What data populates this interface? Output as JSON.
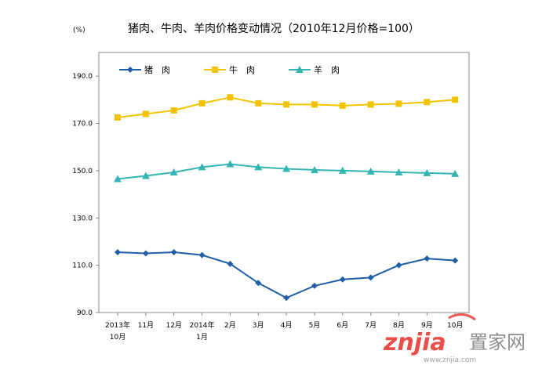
{
  "chart_data": {
    "type": "line",
    "title": "猪肉、牛肉、羊肉价格变动情况（2010年12月价格=100）",
    "unit": "(%)",
    "categories": [
      [
        "2013年",
        "10月"
      ],
      [
        "11月"
      ],
      [
        "12月"
      ],
      [
        "2014年",
        "1月"
      ],
      [
        "2月"
      ],
      [
        "3月"
      ],
      [
        "4月"
      ],
      [
        "5月"
      ],
      [
        "6月"
      ],
      [
        "7月"
      ],
      [
        "8月"
      ],
      [
        "9月"
      ],
      [
        "10月"
      ]
    ],
    "yticks": [
      "90.0",
      "110.0",
      "130.0",
      "150.0",
      "170.0",
      "190.0"
    ],
    "ylim": [
      90,
      200
    ],
    "grid": false,
    "legend": "top-left",
    "series": [
      {
        "name": "猪　肉",
        "marker": "diamond",
        "color": "#1f5fa8",
        "values": [
          115.5,
          115.0,
          115.5,
          114.3,
          110.6,
          102.5,
          96.2,
          101.3,
          104.0,
          104.8,
          110.0,
          112.8,
          112.0
        ]
      },
      {
        "name": "牛　肉",
        "marker": "square",
        "color": "#f2c400",
        "values": [
          172.5,
          174.0,
          175.5,
          178.5,
          181.0,
          178.5,
          178.0,
          178.0,
          177.5,
          178.0,
          178.3,
          179.0,
          180.0
        ]
      },
      {
        "name": "羊　肉",
        "marker": "triangle",
        "color": "#33b6b3",
        "values": [
          146.5,
          147.8,
          149.3,
          151.5,
          152.8,
          151.5,
          150.8,
          150.3,
          150.0,
          149.7,
          149.3,
          149.0,
          148.7
        ]
      }
    ]
  },
  "watermark": {
    "logo_text": "znjia",
    "brand_text": "置家网",
    "url_text": "www.znjia.com"
  }
}
